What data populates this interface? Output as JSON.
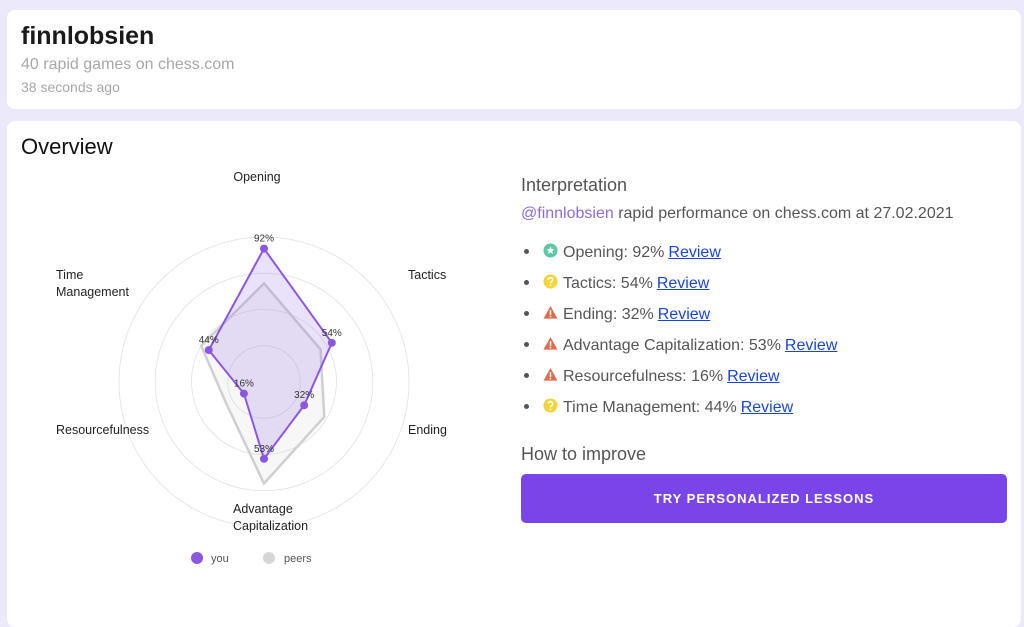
{
  "header": {
    "username": "finnlobsien",
    "subtitle": "40 rapid games on chess.com",
    "time_ago": "38 seconds ago"
  },
  "overview": {
    "title": "Overview"
  },
  "chart_data": {
    "type": "radar",
    "axes": [
      "Opening",
      "Tactics",
      "Ending",
      "Advantage Capitalization",
      "Resourcefulness",
      "Time Management"
    ],
    "axis_label_lines": [
      [
        "Opening"
      ],
      [
        "Tactics"
      ],
      [
        "Ending"
      ],
      [
        "Advantage",
        "Capitalization"
      ],
      [
        "Resourcefulness"
      ],
      [
        "Time",
        "Management"
      ]
    ],
    "range": [
      0,
      100
    ],
    "grid_rings": 4,
    "series": [
      {
        "name": "you",
        "values": [
          92,
          54,
          32,
          53,
          16,
          44
        ],
        "color": "#8a58e0",
        "fill": "rgba(160,125,235,0.22)"
      },
      {
        "name": "peers",
        "values": [
          68,
          45,
          48,
          70,
          30,
          50
        ],
        "color": "#cfcfcf"
      }
    ],
    "data_labels": [
      "92%",
      "54%",
      "32%",
      "53%",
      "16%",
      "44%"
    ],
    "legend": {
      "position": "bottom",
      "items": [
        "you",
        "peers"
      ]
    }
  },
  "interpretation": {
    "title": "Interpretation",
    "handle": "@finnlobsien",
    "performance_text": "rapid performance on chess.com at 27.02.2021",
    "review_label": "Review",
    "items": [
      {
        "text": "Opening: 92%",
        "icon": "star-circle-icon",
        "icon_color": "#5ec7a6"
      },
      {
        "text": "Tactics: 54%",
        "icon": "question-circle-icon",
        "icon_color": "#f2d43c"
      },
      {
        "text": "Ending: 32%",
        "icon": "warning-triangle-icon",
        "icon_color": "#df6d4e"
      },
      {
        "text": "Advantage Capitalization: 53%",
        "icon": "warning-triangle-icon",
        "icon_color": "#df6d4e"
      },
      {
        "text": "Resourcefulness: 16%",
        "icon": "warning-triangle-icon",
        "icon_color": "#df6d4e"
      },
      {
        "text": "Time Management: 44%",
        "icon": "question-circle-icon",
        "icon_color": "#f2d43c"
      }
    ]
  },
  "improve": {
    "title": "How to improve",
    "cta_label": "TRY PERSONALIZED LESSONS"
  }
}
